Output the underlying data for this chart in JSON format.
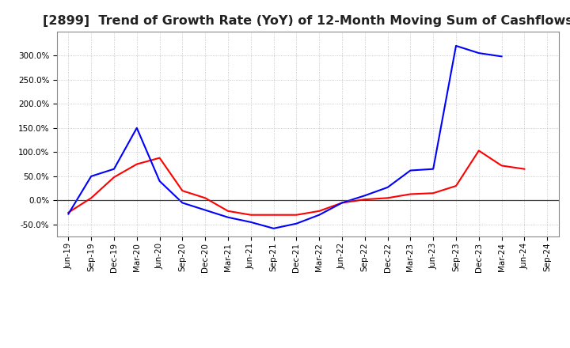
{
  "title": "[2899]  Trend of Growth Rate (YoY) of 12-Month Moving Sum of Cashflows",
  "x_labels": [
    "Jun-19",
    "Sep-19",
    "Dec-19",
    "Mar-20",
    "Jun-20",
    "Sep-20",
    "Dec-20",
    "Mar-21",
    "Jun-21",
    "Sep-21",
    "Dec-21",
    "Mar-22",
    "Jun-22",
    "Sep-22",
    "Dec-22",
    "Mar-23",
    "Jun-23",
    "Sep-23",
    "Dec-23",
    "Mar-24",
    "Jun-24",
    "Sep-24"
  ],
  "operating_cashflow": [
    -25,
    5,
    48,
    75,
    88,
    20,
    5,
    -22,
    -30,
    -30,
    -30,
    -22,
    -5,
    2,
    5,
    13,
    15,
    30,
    103,
    72,
    65,
    null
  ],
  "free_cashflow": [
    -28,
    50,
    65,
    150,
    40,
    -5,
    -20,
    -35,
    -45,
    -58,
    -48,
    -30,
    -5,
    10,
    27,
    62,
    65,
    320,
    305,
    298,
    null,
    null
  ],
  "operating_color": "#ff0000",
  "free_color": "#0000ff",
  "ylim": [
    -75,
    350
  ],
  "yticks": [
    -50,
    0,
    50,
    100,
    150,
    200,
    250,
    300
  ],
  "background_color": "#ffffff",
  "grid_color": "#bbbbbb",
  "title_fontsize": 11.5,
  "tick_fontsize": 7.5,
  "legend_fontsize": 9
}
